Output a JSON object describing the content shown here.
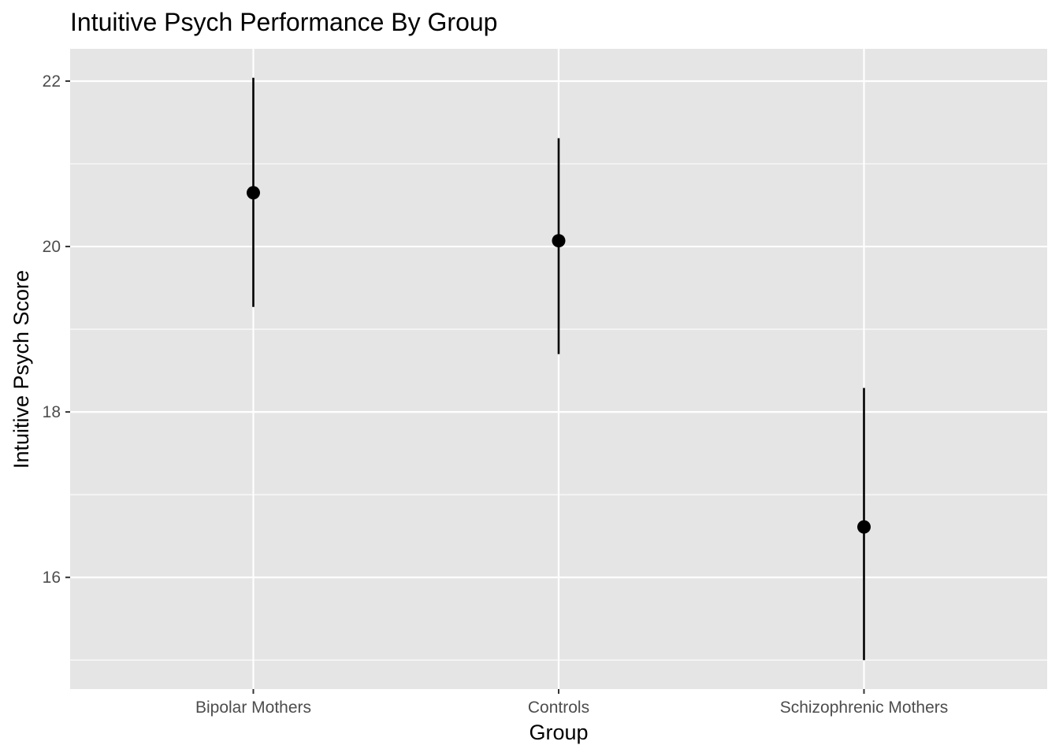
{
  "chart_data": {
    "type": "scatter",
    "title": "Intuitive Psych Performance By Group",
    "xlabel": "Group",
    "ylabel": "Intuitive Psych Score",
    "categories": [
      "Bipolar Mothers",
      "Controls",
      "Schizophrenic Mothers"
    ],
    "series": [
      {
        "points": [
          {
            "x": "Bipolar Mothers",
            "y": 20.65,
            "ymin": 19.27,
            "ymax": 22.04
          },
          {
            "x": "Controls",
            "y": 20.07,
            "ymin": 18.7,
            "ymax": 21.31
          },
          {
            "x": "Schizophrenic Mothers",
            "y": 16.61,
            "ymin": 15.0,
            "ymax": 18.29
          }
        ]
      }
    ],
    "ylim": [
      14.65,
      22.39
    ],
    "y_ticks": [
      16,
      18,
      20,
      22
    ],
    "y_minor_ticks": [
      15,
      17,
      19,
      21
    ],
    "grid": true,
    "colors": {
      "panel_background": "#e5e5e5",
      "grid": "#ffffff",
      "marks": "#000000",
      "tick_label": "#4d4d4d"
    }
  }
}
